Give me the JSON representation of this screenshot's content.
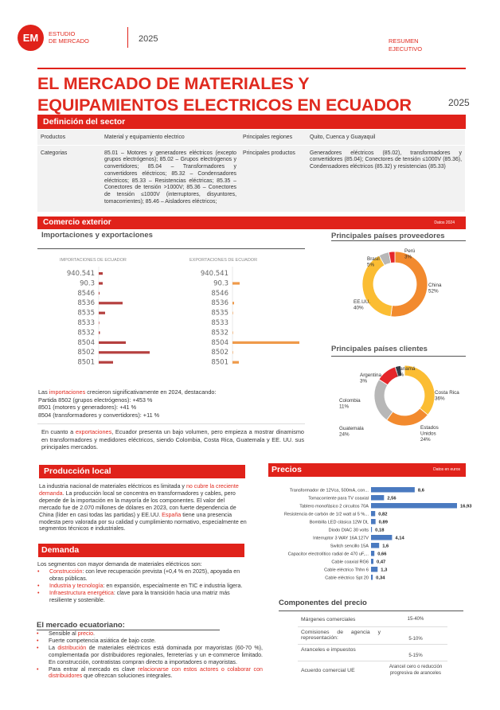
{
  "header": {
    "logo_text": "EM",
    "brand_line1": "ESTUDIO",
    "brand_line2": "DE MERCADO",
    "year": "2025",
    "doc_type_line1": "RESUMEN",
    "doc_type_line2": "EJECUTIVO"
  },
  "title": {
    "line1": "EL MERCADO DE MATERIALES Y",
    "line2": "EQUIPAMIENTOS ELECTRICOS EN ECUADOR",
    "year": "2025"
  },
  "definicion": {
    "heading": "Definición del sector",
    "rows": [
      {
        "k1": "Productos",
        "v1": "Material y equipamiento electrico",
        "k2": "Principales regiones",
        "v2": "Quito, Cuenca y Guayaquil"
      },
      {
        "k1": "Categorias",
        "v1": "85.01 – Motores y generadores eléctricos (excepto grupos electrógenos); 85.02 – Grupos electrógenos y convertidores; 85.04 – Transformadores y convertidores eléctricos; 85.32 – Condensadores eléctricos; 85.33 – Resistencias eléctricas; 85.35 – Conectores de tensión >1000V; 85.36 – Conectores de tensión ≤1000V (interruptores, disyuntores, tomacorrientes); 85.46 – Aisladores eléctricos;",
        "k2": "Principales productos",
        "v2": "Generadores eléctricos (85.02), transformadores y convertidores (85.04); Conectores de tensión ≤1000V (85.36), Condensadores eléctricos (85.32) y resistencias (85.33)"
      }
    ]
  },
  "comercio": {
    "heading": "Comercio exterior",
    "note": "Datos 2024",
    "sub": "Importaciones y exportaciones",
    "prov_heading": "Principales países proveedores",
    "cli_heading": "Principales países clientes",
    "imports_text": {
      "pre": "Las ",
      "hl": "importaciones",
      "post": " crecieron significativamente en 2024, destacando:",
      "l2": "Partida 8502 (grupos electrógenos): +453 %",
      "l3": "8501 (motores y generadores): +41 %",
      "l4": "8504 (transformadores y convertidores): +11 %"
    },
    "exports_text": {
      "pre": "En cuanto a ",
      "hl": "exportaciones",
      "post": ", Ecuador presenta un bajo volumen, pero empieza a mostrar dinamismo en transformadores y medidores eléctricos, siendo Colombia, Costa Rica, Guatemala y EE. UU. sus principales mercados."
    }
  },
  "chart_data": [
    {
      "type": "bar",
      "orientation": "horizontal",
      "title": "IMPORTACIONES DE ECUADOR",
      "categories": [
        "940.541",
        "90.3",
        "8546",
        "8536",
        "8535",
        "8533",
        "8532",
        "8504",
        "8502",
        "8501"
      ],
      "values": [
        5,
        5,
        1,
        30,
        8,
        0.5,
        1.5,
        34,
        64,
        18
      ],
      "color": "#b5403f"
    },
    {
      "type": "bar",
      "orientation": "horizontal",
      "title": "EXPORTACIONES DE ECUADOR",
      "categories": [
        "940.541",
        "90.3",
        "8546",
        "8536",
        "8535",
        "8533",
        "8532",
        "8504",
        "8502",
        "8501"
      ],
      "values": [
        0,
        9,
        0,
        2,
        0.5,
        0,
        0.3,
        84,
        0.5,
        8
      ],
      "color": "#ef9a4a"
    },
    {
      "type": "pie",
      "donut": true,
      "title": "Principales países proveedores",
      "labels": [
        "China",
        "EE.UU.",
        "Brasil",
        "Perú"
      ],
      "values": [
        52,
        40,
        5,
        3
      ],
      "display": [
        "52%",
        "40%",
        "5%",
        "3%"
      ],
      "colors": [
        "#f28a2e",
        "#fbbd33",
        "#b7b7b7",
        "#e5262a"
      ]
    },
    {
      "type": "pie",
      "donut": true,
      "title": "Principales países clientes",
      "labels": [
        "Costa Rica",
        "Estados Unidos",
        "Guatemala",
        "Colombia",
        "Argentina",
        "Panamá"
      ],
      "values": [
        36,
        24,
        24,
        11,
        3,
        2
      ],
      "display": [
        "36%",
        "24%",
        "24%",
        "11%",
        "3%",
        "2%"
      ],
      "colors": [
        "#fbbd33",
        "#f28a2e",
        "#b7b7b7",
        "#e5262a",
        "#333d4a",
        "#ffffff"
      ]
    },
    {
      "type": "bar",
      "orientation": "horizontal",
      "title": "Precios",
      "note": "Datos en euros",
      "categories": [
        "Transformador de 12Vca, 500mA, con...",
        "Tomacorriente para TV coaxial",
        "Tablero monofásico 2 circuitos 70A",
        "Resistencia de carbón de 1/2 watt al 5 %...",
        "Bombilla LED clásica 12W DL",
        "Diodo DIAC 30 volts",
        "Interruptor 3 WAY 16A 127V",
        "Switch sencillo 15A",
        "Capacitor electrolítico radial de 470 uF,...",
        "Cable coaxial RG6",
        "Cable eléctrico Thhn 6",
        "Cable eléctrico Spt 20"
      ],
      "values": [
        8.6,
        2.56,
        16.93,
        0.82,
        0.89,
        0.18,
        4.14,
        1.6,
        0.66,
        0.47,
        1.3,
        0.34
      ],
      "labels": [
        "8,6",
        "2,56",
        "16,93",
        "0,82",
        "0,89",
        "0,18",
        "4,14",
        "1,6",
        "0,66",
        "0,47",
        "1,3",
        "0,34"
      ],
      "color": "#4a7ac0"
    }
  ],
  "produccion": {
    "heading": "Producción local",
    "p1": "La industria nacional de materiales eléctricos es limitada y ",
    "hl1": "no cubre la creciente demanda",
    "p2": ". La producción local se concentra en transformadores y cables, pero depende de la importación en la mayoría de los componentes. El valor del mercado fue de 2.070 millones de dólares en 2023, con fuerte dependencia de China (líder en casi todas las partidas) y EE.UU. ",
    "hl2": "España",
    "p3": " tiene una presencia modesta pero valorada por su calidad y cumplimiento normativo, especialmente en segmentos técnicos e industriales."
  },
  "demanda": {
    "heading": "Demanda",
    "intro": "Los segmentos con mayor demanda de materiales eléctricos son:",
    "items": [
      {
        "hl": "Construcción",
        "text": ": con leve recuperación prevista (+0,4 % en 2025), apoyada en obras públicas."
      },
      {
        "hl": "Industria y tecnología",
        "text": ": en expansión, especialmente en TIC e industria ligera."
      },
      {
        "hl": "Infraestructura energética",
        "text": ": clave para la transición hacia una matriz más resiliente y sostenible."
      }
    ]
  },
  "mercado": {
    "heading": "El mercado ecuatoriano:",
    "i1": {
      "pre": "Sensible al ",
      "hl": "precio",
      "post": "."
    },
    "i2": {
      "text": "Fuerte competencia asiática de bajo coste."
    },
    "i3": {
      "pre": "La ",
      "hl": "distribución",
      "post": " de materiales eléctricos está dominada por mayoristas (60-70 %), complementada por distribuidores regionales, ferreterías y un e-commerce limitado. En construcción, contratistas compran directo a importadores o mayoristas."
    },
    "i4": {
      "pre": "Para entrar al mercado es clave ",
      "hl": "relacionarse con estos actores o colaborar con distribuidores",
      "post": " que ofrezcan soluciones integrales."
    }
  },
  "precios": {
    "heading": "Precios",
    "note": "Datos en euros"
  },
  "componentes": {
    "heading": "Componentes del precio",
    "rows": [
      {
        "k": "Márgenes comerciales",
        "v": "15-40%"
      },
      {
        "k": "Comisiones de agencia y representación:",
        "v": "5-10%"
      },
      {
        "k": "Aranceles e impuestos",
        "v": "5-15%"
      },
      {
        "k": "Acuerdo comercial UE",
        "v": "Arancel cero o reducción progresiva de aranceles"
      }
    ]
  }
}
